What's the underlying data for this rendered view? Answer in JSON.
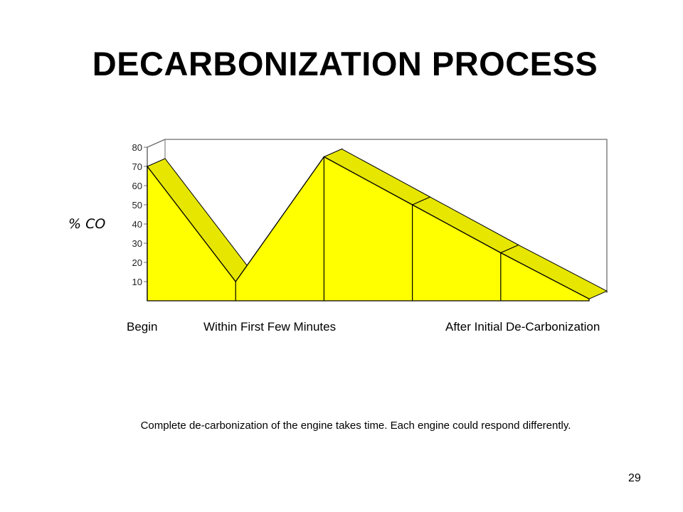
{
  "slide": {
    "title": "DECARBONIZATION PROCESS",
    "footnote": "Complete de-carbonization of the engine takes time.  Each engine could respond differently.",
    "page_number": "29"
  },
  "chart_data": {
    "type": "area",
    "title": "",
    "ylabel": "% CO",
    "xlabel": "",
    "ylim": [
      0,
      80
    ],
    "y_ticks": [
      10,
      20,
      30,
      40,
      50,
      60,
      70,
      80
    ],
    "categories": [
      "Begin",
      "Within First Few Minutes",
      "After Initial De-Carbonization"
    ],
    "points": [
      {
        "x": 0,
        "y": 70
      },
      {
        "x": 1,
        "y": 10
      },
      {
        "x": 2,
        "y": 75
      },
      {
        "x": 3,
        "y": 50
      },
      {
        "x": 4,
        "y": 25
      },
      {
        "x": 5,
        "y": 1
      }
    ],
    "three_d": true,
    "grid": false,
    "colors": {
      "fill": "#FFFF00",
      "top": "#E6E600",
      "outline": "#000000"
    }
  }
}
